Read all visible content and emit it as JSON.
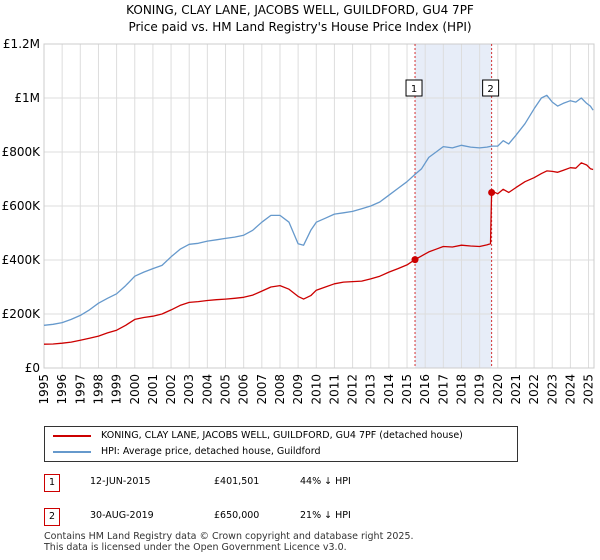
{
  "chart_data": {
    "type": "line",
    "title": "KONING, CLAY LANE, JACOBS WELL, GUILDFORD, GU4 7PF",
    "subtitle": "Price paid vs. HM Land Registry's House Price Index (HPI)",
    "xlabel": "",
    "ylabel": "",
    "xlim": [
      1995,
      2025.3
    ],
    "ylim": [
      0,
      1200000
    ],
    "grid": true,
    "legend_position": "below",
    "x_ticks": [
      1995,
      1996,
      1997,
      1998,
      1999,
      2000,
      2001,
      2002,
      2003,
      2004,
      2005,
      2006,
      2007,
      2008,
      2009,
      2010,
      2011,
      2012,
      2013,
      2014,
      2015,
      2016,
      2017,
      2018,
      2019,
      2020,
      2021,
      2022,
      2023,
      2024,
      2025
    ],
    "y_ticks": [
      {
        "value": 0,
        "label": "£0"
      },
      {
        "value": 200000,
        "label": "£200K"
      },
      {
        "value": 400000,
        "label": "£400K"
      },
      {
        "value": 600000,
        "label": "£600K"
      },
      {
        "value": 800000,
        "label": "£800K"
      },
      {
        "value": 1000000,
        "label": "£1M"
      },
      {
        "value": 1200000,
        "label": "£1.2M"
      }
    ],
    "series": [
      {
        "name": "KONING, CLAY LANE, JACOBS WELL, GUILDFORD, GU4 7PF (detached house)",
        "color": "#cc0000",
        "x": [
          1995.0,
          1995.5,
          1996.0,
          1996.5,
          1997.0,
          1997.5,
          1998.0,
          1998.5,
          1999.0,
          1999.5,
          2000.0,
          2000.5,
          2001.0,
          2001.5,
          2002.0,
          2002.5,
          2003.0,
          2003.5,
          2004.0,
          2004.5,
          2005.0,
          2005.5,
          2006.0,
          2006.5,
          2007.0,
          2007.5,
          2008.0,
          2008.5,
          2009.0,
          2009.3,
          2009.7,
          2010.0,
          2010.5,
          2011.0,
          2011.5,
          2012.0,
          2012.5,
          2013.0,
          2013.5,
          2014.0,
          2014.5,
          2015.0,
          2015.44,
          2015.8,
          2016.2,
          2016.6,
          2017.0,
          2017.5,
          2018.0,
          2018.5,
          2019.0,
          2019.4,
          2019.6,
          2019.66,
          2019.7,
          2020.0,
          2020.3,
          2020.6,
          2021.0,
          2021.5,
          2022.0,
          2022.4,
          2022.7,
          2023.0,
          2023.3,
          2023.6,
          2024.0,
          2024.3,
          2024.6,
          2024.9,
          2025.1,
          2025.25
        ],
        "values": [
          88000,
          89000,
          92000,
          96000,
          103000,
          110000,
          118000,
          130000,
          140000,
          158000,
          180000,
          187000,
          192000,
          200000,
          215000,
          232000,
          243000,
          246000,
          250000,
          253000,
          255000,
          258000,
          262000,
          270000,
          285000,
          300000,
          305000,
          292000,
          265000,
          255000,
          268000,
          288000,
          300000,
          312000,
          318000,
          320000,
          322000,
          330000,
          340000,
          355000,
          368000,
          382000,
          401501,
          415000,
          430000,
          440000,
          450000,
          448000,
          455000,
          452000,
          450000,
          456000,
          460000,
          650000,
          655000,
          645000,
          662000,
          650000,
          668000,
          690000,
          705000,
          720000,
          730000,
          728000,
          725000,
          732000,
          742000,
          740000,
          760000,
          752000,
          738000,
          735000
        ]
      },
      {
        "name": "HPI: Average price, detached house, Guildford",
        "color": "#6699cc",
        "x": [
          1995.0,
          1995.5,
          1996.0,
          1996.5,
          1997.0,
          1997.5,
          1998.0,
          1998.5,
          1999.0,
          1999.5,
          2000.0,
          2000.5,
          2001.0,
          2001.5,
          2002.0,
          2002.5,
          2003.0,
          2003.5,
          2004.0,
          2004.5,
          2005.0,
          2005.5,
          2006.0,
          2006.5,
          2007.0,
          2007.5,
          2008.0,
          2008.5,
          2009.0,
          2009.3,
          2009.7,
          2010.0,
          2010.5,
          2011.0,
          2011.5,
          2012.0,
          2012.5,
          2013.0,
          2013.5,
          2014.0,
          2014.5,
          2015.0,
          2015.44,
          2015.8,
          2016.2,
          2016.6,
          2017.0,
          2017.5,
          2018.0,
          2018.5,
          2019.0,
          2019.4,
          2019.66,
          2020.0,
          2020.3,
          2020.6,
          2021.0,
          2021.5,
          2022.0,
          2022.4,
          2022.7,
          2023.0,
          2023.3,
          2023.6,
          2024.0,
          2024.3,
          2024.6,
          2024.9,
          2025.1,
          2025.25
        ],
        "values": [
          158000,
          162000,
          168000,
          180000,
          195000,
          215000,
          240000,
          258000,
          275000,
          305000,
          340000,
          355000,
          368000,
          380000,
          412000,
          440000,
          458000,
          462000,
          470000,
          475000,
          480000,
          485000,
          492000,
          510000,
          540000,
          565000,
          565000,
          540000,
          460000,
          455000,
          510000,
          540000,
          555000,
          570000,
          575000,
          580000,
          590000,
          600000,
          615000,
          640000,
          665000,
          690000,
          717000,
          738000,
          780000,
          800000,
          820000,
          815000,
          825000,
          818000,
          815000,
          818000,
          822000,
          822000,
          842000,
          830000,
          862000,
          905000,
          960000,
          1000000,
          1010000,
          985000,
          970000,
          980000,
          990000,
          985000,
          1000000,
          980000,
          970000,
          955000
        ]
      }
    ],
    "sales": [
      {
        "id": "1",
        "x": 2015.44,
        "value": 401501
      },
      {
        "id": "2",
        "x": 2019.66,
        "value": 650000
      }
    ],
    "shaded_region": [
      2015.44,
      2019.66
    ]
  },
  "legend": {
    "property_label": "KONING, CLAY LANE, JACOBS WELL, GUILDFORD, GU4 7PF (detached house)",
    "hpi_label": "HPI: Average price, detached house, Guildford",
    "property_color": "#cc0000",
    "hpi_color": "#6699cc"
  },
  "sales_table": [
    {
      "id": "1",
      "date": "12-JUN-2015",
      "price": "£401,501",
      "delta": "44% ↓ HPI"
    },
    {
      "id": "2",
      "date": "30-AUG-2019",
      "price": "£650,000",
      "delta": "21% ↓ HPI"
    }
  ],
  "footer": {
    "line1": "Contains HM Land Registry data © Crown copyright and database right 2025.",
    "line2": "This data is licensed under the Open Government Licence v3.0."
  }
}
